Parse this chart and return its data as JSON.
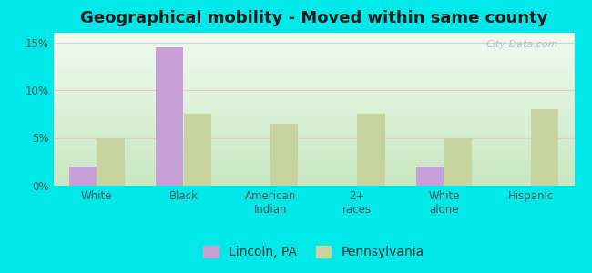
{
  "title": "Geographical mobility - Moved within same county",
  "categories": [
    "White",
    "Black",
    "American\nIndian",
    "2+\nraces",
    "White\nalone",
    "Hispanic"
  ],
  "lincoln_values": [
    2.0,
    14.5,
    0,
    0,
    2.0,
    0
  ],
  "pennsylvania_values": [
    5.0,
    7.5,
    6.5,
    7.5,
    5.0,
    8.0
  ],
  "lincoln_color": "#c8a0d8",
  "pennsylvania_color": "#c8d4a0",
  "background_color": "#00e8e8",
  "bar_width": 0.32,
  "ylim": [
    0,
    16
  ],
  "yticks": [
    0,
    5,
    10,
    15
  ],
  "ytick_labels": [
    "0%",
    "5%",
    "10%",
    "15%"
  ],
  "legend_labels": [
    "Lincoln, PA",
    "Pennsylvania"
  ],
  "title_fontsize": 13,
  "tick_fontsize": 8.5,
  "legend_fontsize": 10,
  "watermark_text": "City-Data.com",
  "grid_color": "#e8c8c8",
  "tick_color": "#555555"
}
